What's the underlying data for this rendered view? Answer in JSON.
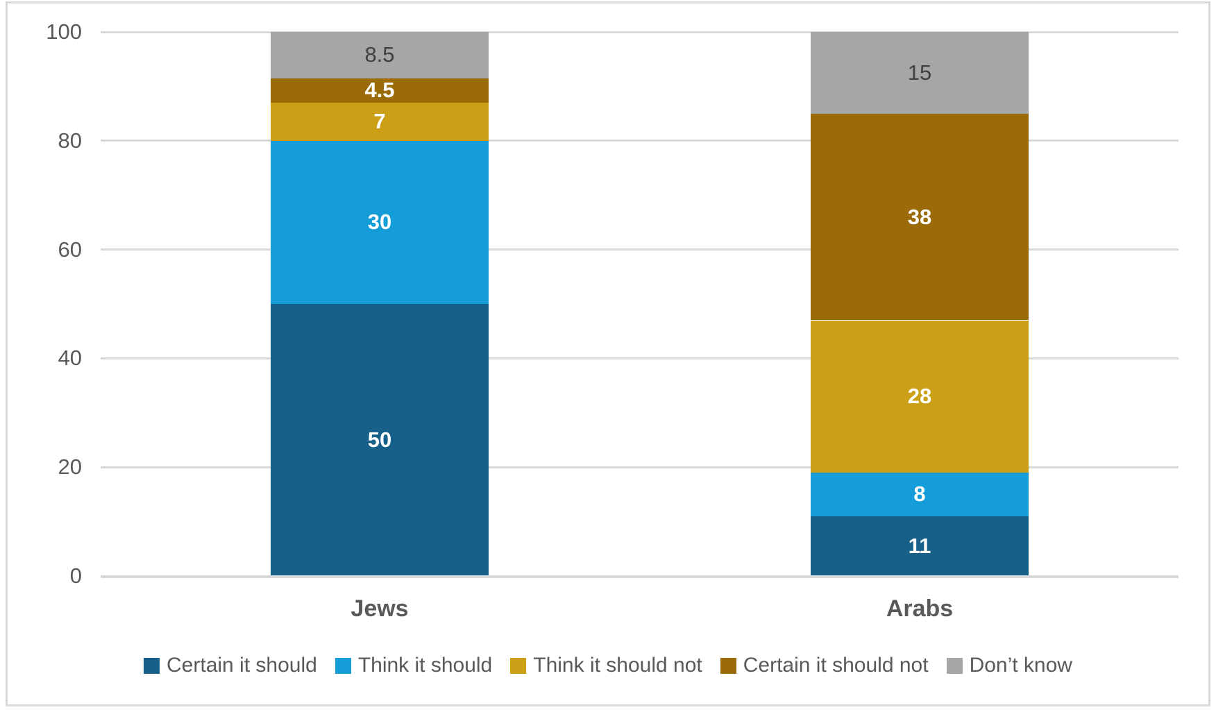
{
  "chart_data": {
    "type": "bar",
    "stacked": true,
    "title": "",
    "xlabel": "",
    "ylabel": "",
    "categories": [
      "Jews",
      "Arabs"
    ],
    "series": [
      {
        "name": "Certain it should",
        "color": "#16608A",
        "values": [
          50,
          11
        ],
        "label_color": "#FFFFFF",
        "label_bold": true
      },
      {
        "name": "Think it should",
        "color": "#149DD9",
        "values": [
          30,
          8
        ],
        "label_color": "#FFFFFF",
        "label_bold": true
      },
      {
        "name": "Think it should not",
        "color": "#CBA016",
        "values": [
          7,
          28
        ],
        "label_color": "#FFFFFF",
        "label_bold": true
      },
      {
        "name": "Certain it should not",
        "color": "#9A6B08",
        "values": [
          4.5,
          38
        ],
        "label_color": "#FFFFFF",
        "label_bold": true
      },
      {
        "name": "Don’t know",
        "color": "#A6A6A6",
        "values": [
          8.5,
          15
        ],
        "label_color": "#404040",
        "label_bold": false
      }
    ],
    "ylim": [
      0,
      100
    ],
    "yticks": [
      0,
      20,
      40,
      60,
      80,
      100
    ],
    "grid": true,
    "legend_position": "bottom",
    "colors": {
      "gridline": "#D9D9D9",
      "border": "#D9D9D9",
      "axis_text": "#595959",
      "category_text": "#595959",
      "legend_text": "#595959",
      "background": "#FFFFFF"
    }
  }
}
